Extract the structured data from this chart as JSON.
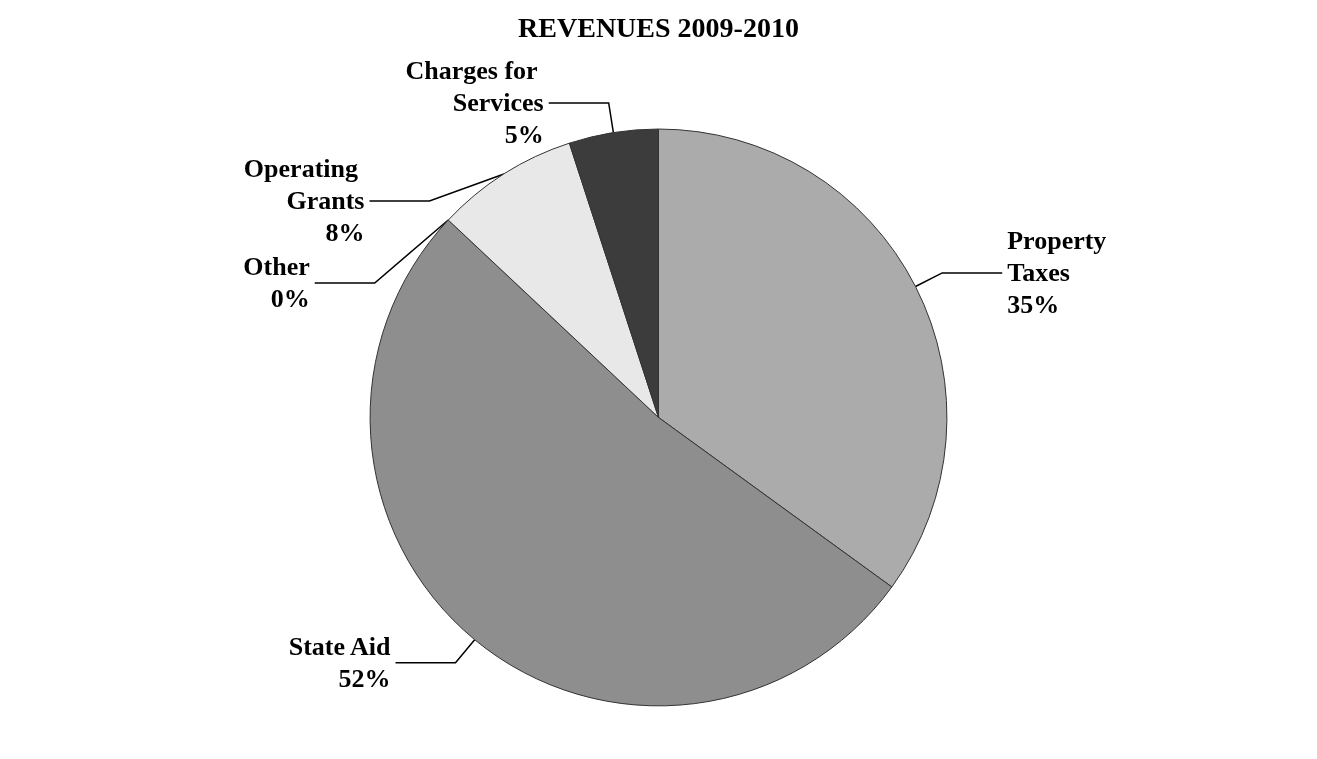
{
  "chart_data": {
    "type": "pie",
    "title": "REVENUES 2009-2010",
    "categories": [
      "Property Taxes",
      "State Aid",
      "Other",
      "Operating Grants",
      "Charges for Services"
    ],
    "values": [
      35,
      52,
      0,
      8,
      5
    ],
    "value_labels": [
      "35%",
      "52%",
      "0%",
      "8%",
      "5%"
    ],
    "colors": [
      "#ababab",
      "#8e8e8e",
      "#d6d6d6",
      "#e8e8e8",
      "#3c3c3c"
    ]
  }
}
